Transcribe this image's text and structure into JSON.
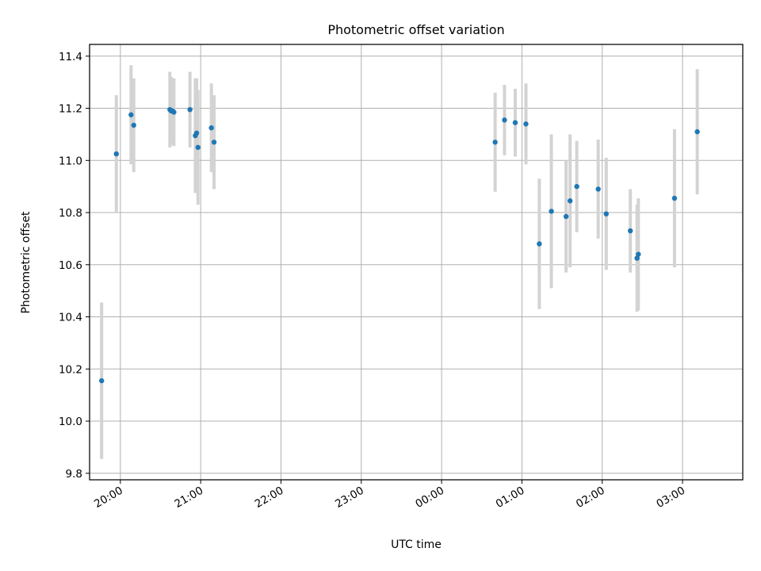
{
  "chart_data": {
    "type": "scatter",
    "title": "Photometric offset variation",
    "xlabel": "UTC time",
    "ylabel": "Photometric offset",
    "x_axis": "time",
    "grid": true,
    "colors": {
      "points": "#1f77b4",
      "errorbars": "#d3d3d3",
      "grid": "#b0b0b0"
    },
    "xlim": [
      "19:37",
      "03:45"
    ],
    "ylim": [
      9.775,
      11.445
    ],
    "xticks": [
      "20:00",
      "21:00",
      "22:00",
      "23:00",
      "00:00",
      "01:00",
      "02:00",
      "03:00"
    ],
    "yticks": [
      "9.8",
      "10.0",
      "10.2",
      "10.4",
      "10.6",
      "10.8",
      "11.0",
      "11.2",
      "11.4"
    ],
    "points": [
      {
        "x": "19:46",
        "y": 10.155,
        "err": 0.3
      },
      {
        "x": "19:57",
        "y": 11.025,
        "err": 0.225
      },
      {
        "x": "20:08",
        "y": 11.175,
        "err": 0.19
      },
      {
        "x": "20:10",
        "y": 11.135,
        "err": 0.18
      },
      {
        "x": "20:37",
        "y": 11.195,
        "err": 0.145
      },
      {
        "x": "20:38",
        "y": 11.19,
        "err": 0.13
      },
      {
        "x": "20:39",
        "y": 11.19,
        "err": 0.12
      },
      {
        "x": "20:40",
        "y": 11.185,
        "err": 0.13
      },
      {
        "x": "20:52",
        "y": 11.195,
        "err": 0.145
      },
      {
        "x": "20:56",
        "y": 11.095,
        "err": 0.22
      },
      {
        "x": "20:57",
        "y": 11.105,
        "err": 0.21
      },
      {
        "x": "20:58",
        "y": 11.05,
        "err": 0.22
      },
      {
        "x": "21:08",
        "y": 11.125,
        "err": 0.17
      },
      {
        "x": "21:10",
        "y": 11.07,
        "err": 0.18
      },
      {
        "x": "00:40",
        "y": 11.07,
        "err": 0.19
      },
      {
        "x": "00:47",
        "y": 11.155,
        "err": 0.135
      },
      {
        "x": "00:55",
        "y": 11.145,
        "err": 0.13
      },
      {
        "x": "01:03",
        "y": 11.14,
        "err": 0.155
      },
      {
        "x": "01:13",
        "y": 10.68,
        "err": 0.25
      },
      {
        "x": "01:22",
        "y": 10.805,
        "err": 0.295
      },
      {
        "x": "01:33",
        "y": 10.785,
        "err": 0.215
      },
      {
        "x": "01:36",
        "y": 10.845,
        "err": 0.255
      },
      {
        "x": "01:41",
        "y": 10.9,
        "err": 0.175
      },
      {
        "x": "01:57",
        "y": 10.89,
        "err": 0.19
      },
      {
        "x": "02:03",
        "y": 10.795,
        "err": 0.215
      },
      {
        "x": "02:21",
        "y": 10.73,
        "err": 0.16
      },
      {
        "x": "02:26",
        "y": 10.625,
        "err": 0.205
      },
      {
        "x": "02:27",
        "y": 10.64,
        "err": 0.215
      },
      {
        "x": "02:54",
        "y": 10.855,
        "err": 0.265
      },
      {
        "x": "03:11",
        "y": 11.11,
        "err": 0.24
      }
    ]
  }
}
